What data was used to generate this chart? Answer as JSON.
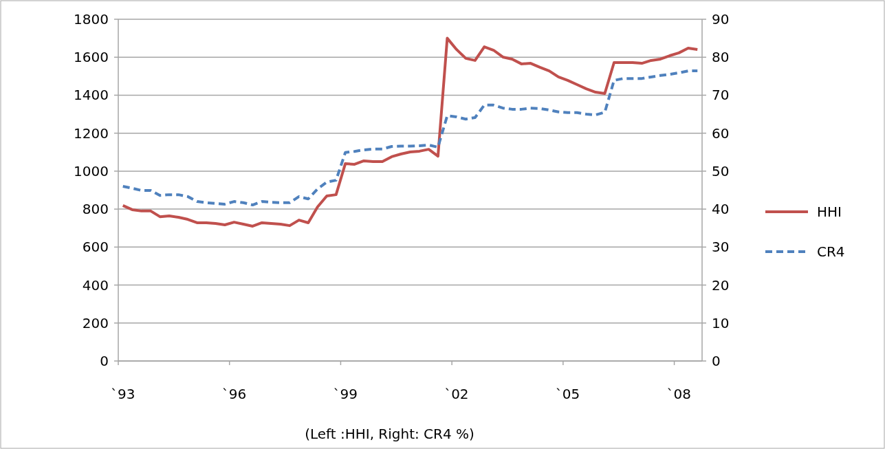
{
  "chart_data": {
    "type": "line",
    "annotations": [
      "(Left :HHI, Right: CR4 %)"
    ],
    "categories": [
      "`93",
      null,
      null,
      null,
      null,
      null,
      null,
      null,
      null,
      null,
      null,
      null,
      "`96",
      null,
      null,
      null,
      null,
      null,
      null,
      null,
      null,
      null,
      null,
      null,
      "`99",
      null,
      null,
      null,
      null,
      null,
      null,
      null,
      null,
      null,
      null,
      null,
      "`02",
      null,
      null,
      null,
      null,
      null,
      null,
      null,
      null,
      null,
      null,
      null,
      "`05",
      null,
      null,
      null,
      null,
      null,
      null,
      null,
      null,
      null,
      null,
      null,
      "`08",
      null,
      null
    ],
    "series": [
      {
        "name": "HHI",
        "color": "#c0504d",
        "line_style": "solid",
        "values": [
          819,
          797,
          790,
          790,
          760,
          764,
          757,
          746,
          728,
          728,
          724,
          717,
          731,
          721,
          710,
          728,
          724,
          721,
          713,
          742,
          728,
          811,
          869,
          876,
          1039,
          1036,
          1054,
          1050,
          1050,
          1076,
          1090,
          1101,
          1105,
          1115,
          1079,
          1700,
          1641,
          1594,
          1583,
          1655,
          1637,
          1601,
          1590,
          1565,
          1568,
          1547,
          1528,
          1496,
          1478,
          1456,
          1434,
          1416,
          1409,
          1572,
          1572,
          1572,
          1568,
          1583,
          1590,
          1608,
          1623,
          1648,
          1641
        ]
      },
      {
        "name": "CR4",
        "color": "#4f81bd",
        "line_style": "dashed",
        "axis": "y2",
        "values": [
          46.0,
          45.5,
          44.9,
          44.9,
          43.6,
          43.8,
          43.8,
          43.3,
          42.0,
          41.7,
          41.5,
          41.3,
          42.0,
          41.7,
          41.1,
          42.0,
          41.8,
          41.7,
          41.7,
          43.3,
          42.7,
          45.3,
          47.1,
          47.6,
          54.9,
          55.2,
          55.6,
          55.8,
          55.8,
          56.5,
          56.6,
          56.6,
          56.7,
          56.9,
          56.3,
          64.6,
          64.3,
          63.7,
          64.1,
          67.4,
          67.4,
          66.6,
          66.3,
          66.3,
          66.6,
          66.5,
          66.1,
          65.6,
          65.4,
          65.4,
          65.0,
          64.8,
          65.5,
          73.9,
          74.4,
          74.4,
          74.4,
          74.8,
          75.2,
          75.5,
          75.9,
          76.4,
          76.4
        ]
      }
    ],
    "ylim": [
      0,
      1800
    ],
    "yticks": [
      0,
      200,
      400,
      600,
      800,
      1000,
      1200,
      1400,
      1600,
      1800
    ],
    "y2lim": [
      0,
      90
    ],
    "y2ticks": [
      0,
      10,
      20,
      30,
      40,
      50,
      60,
      70,
      80,
      90
    ],
    "grid": "y",
    "legend": "right"
  }
}
